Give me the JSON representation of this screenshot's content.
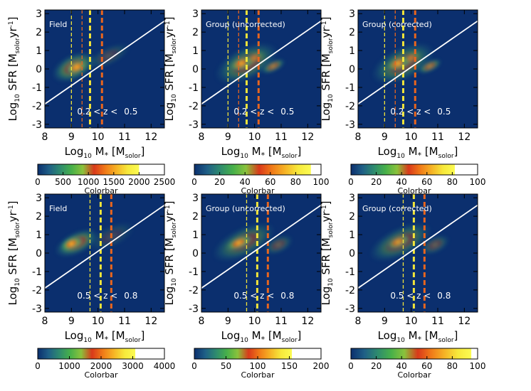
{
  "colors": {
    "plot_bg": "#0b2f6e",
    "fit_line": "#ffffff",
    "vline_yellow": "#f2e43a",
    "vline_orange": "#e8651e",
    "colormap": [
      "#0b2f6e",
      "#1f5f86",
      "#2e8b6e",
      "#47b04a",
      "#8ac23c",
      "#d9391a",
      "#f07a18",
      "#f6b325",
      "#f7e93b",
      "#fbfb52"
    ]
  },
  "chart_data": [
    {
      "type": "heatmap",
      "row": 0,
      "col": 0,
      "label": "Field",
      "redshift": {
        "prefix": "0.2 < z <",
        "value": "0.5"
      },
      "xlabel": {
        "main": "Log",
        "sub": "10",
        "rest": " M",
        "star": "*",
        "unit": "solor"
      },
      "ylabel": {
        "main": "Log",
        "sub": "10",
        "rest": " SFR [M",
        "unit": "solor",
        "yr": "yr",
        "exp": "-1",
        "close": "]"
      },
      "xlim": [
        8,
        12.5
      ],
      "ylim": [
        -3.2,
        3.2
      ],
      "xticks": [
        "8",
        "9",
        "10",
        "11",
        "12"
      ],
      "yticks": [
        "-3",
        "-2",
        "-1",
        "0",
        "1",
        "2",
        "3"
      ],
      "fit_line": {
        "x": [
          8,
          12.5
        ],
        "y": [
          -1.9,
          2.6
        ]
      },
      "vlines": [
        {
          "x": 9.0,
          "color": "yellow",
          "width": "thin"
        },
        {
          "x": 9.4,
          "color": "orange",
          "width": "thin"
        },
        {
          "x": 9.7,
          "color": "yellow",
          "width": "thick"
        },
        {
          "x": 10.15,
          "color": "orange",
          "width": "thick"
        }
      ],
      "blobs": [
        {
          "x": 9.1,
          "y": 0.1,
          "sx": 0.9,
          "sy": 0.7,
          "w": 0.6
        },
        {
          "x": 9.2,
          "y": 0.1,
          "sx": 0.45,
          "sy": 0.35,
          "w": 1.0
        },
        {
          "x": 10.4,
          "y": 0.7,
          "sx": 0.9,
          "sy": 0.5,
          "w": 0.25
        }
      ],
      "colorbar": {
        "ticks": [
          "0",
          "500",
          "1000",
          "1500",
          "2000",
          "2500"
        ],
        "fill": 0.8,
        "label": "Colorbar"
      }
    },
    {
      "type": "heatmap",
      "row": 0,
      "col": 1,
      "label": "Group (uncorrected)",
      "redshift": {
        "prefix": "0.2 < z <",
        "value": "0.5"
      },
      "xlabel": {
        "main": "Log",
        "sub": "10",
        "rest": " M",
        "star": "*",
        "unit": "solor"
      },
      "ylabel": {
        "main": "Log",
        "sub": "10",
        "rest": " SFR [M",
        "unit": "solor",
        "yr": "yr",
        "exp": "-1",
        "close": "]"
      },
      "xlim": [
        8,
        12.5
      ],
      "ylim": [
        -3.2,
        3.2
      ],
      "xticks": [
        "8",
        "9",
        "10",
        "11",
        "12"
      ],
      "yticks": [
        "-3",
        "-2",
        "-1",
        "0",
        "1",
        "2",
        "3"
      ],
      "fit_line": {
        "x": [
          8,
          12.5
        ],
        "y": [
          -1.9,
          2.6
        ]
      },
      "vlines": [
        {
          "x": 9.0,
          "color": "yellow",
          "width": "thin"
        },
        {
          "x": 9.4,
          "color": "orange",
          "width": "thin"
        },
        {
          "x": 9.7,
          "color": "yellow",
          "width": "thick"
        },
        {
          "x": 10.15,
          "color": "orange",
          "width": "thick"
        }
      ],
      "blobs": [
        {
          "x": 9.7,
          "y": 0.3,
          "sx": 1.3,
          "sy": 0.9,
          "w": 0.5
        },
        {
          "x": 9.5,
          "y": 0.3,
          "sx": 0.5,
          "sy": 0.35,
          "w": 0.9
        },
        {
          "x": 10.7,
          "y": 0.15,
          "sx": 0.5,
          "sy": 0.3,
          "w": 0.65
        },
        {
          "x": 10.0,
          "y": 0.6,
          "sx": 0.4,
          "sy": 0.3,
          "w": 0.6
        }
      ],
      "colorbar": {
        "ticks": [
          "0",
          "20",
          "40",
          "60",
          "80",
          "100"
        ],
        "fill": 0.92,
        "label": "Colorbar"
      }
    },
    {
      "type": "heatmap",
      "row": 0,
      "col": 2,
      "label": "Group (corrected)",
      "redshift": {
        "prefix": "0.2 < z <",
        "value": "0.5"
      },
      "xlabel": {
        "main": "Log",
        "sub": "10",
        "rest": " M",
        "star": "*",
        "unit": "solor"
      },
      "ylabel": {
        "main": "Log",
        "sub": "10",
        "rest": " SFR [M",
        "unit": "solor",
        "yr": "yr",
        "exp": "-1",
        "close": "]"
      },
      "xlim": [
        8,
        12.5
      ],
      "ylim": [
        -3.2,
        3.2
      ],
      "xticks": [
        "8",
        "9",
        "10",
        "11",
        "12"
      ],
      "yticks": [
        "-3",
        "-2",
        "-1",
        "0",
        "1",
        "2",
        "3"
      ],
      "fit_line": {
        "x": [
          8,
          12.5
        ],
        "y": [
          -1.9,
          2.6
        ]
      },
      "vlines": [
        {
          "x": 9.0,
          "color": "yellow",
          "width": "thin"
        },
        {
          "x": 9.4,
          "color": "orange",
          "width": "thin"
        },
        {
          "x": 9.7,
          "color": "yellow",
          "width": "thick"
        },
        {
          "x": 10.15,
          "color": "orange",
          "width": "thick"
        }
      ],
      "blobs": [
        {
          "x": 9.7,
          "y": 0.3,
          "sx": 1.3,
          "sy": 0.9,
          "w": 0.5
        },
        {
          "x": 9.5,
          "y": 0.3,
          "sx": 0.5,
          "sy": 0.35,
          "w": 0.9
        },
        {
          "x": 10.7,
          "y": 0.15,
          "sx": 0.5,
          "sy": 0.3,
          "w": 0.65
        },
        {
          "x": 10.0,
          "y": 0.6,
          "sx": 0.4,
          "sy": 0.3,
          "w": 0.6
        }
      ],
      "colorbar": {
        "ticks": [
          "0",
          "20",
          "40",
          "60",
          "80",
          "100"
        ],
        "fill": 0.82,
        "label": "Colorbar"
      }
    },
    {
      "type": "heatmap",
      "row": 1,
      "col": 0,
      "label": "Field",
      "redshift": {
        "prefix": "0.5 < z <",
        "value": "0.8"
      },
      "xlabel": {
        "main": "Log",
        "sub": "10",
        "rest": " M",
        "star": "*",
        "unit": "solor"
      },
      "ylabel": {
        "main": "Log",
        "sub": "10",
        "rest": " SFR [M",
        "unit": "solor",
        "yr": "yr",
        "exp": "-1",
        "close": "]"
      },
      "xlim": [
        8,
        12.5
      ],
      "ylim": [
        -3.2,
        3.2
      ],
      "xticks": [
        "8",
        "9",
        "10",
        "11",
        "12"
      ],
      "yticks": [
        "-3",
        "-2",
        "-1",
        "0",
        "1",
        "2",
        "3"
      ],
      "fit_line": {
        "x": [
          8,
          12.5
        ],
        "y": [
          -1.9,
          2.6
        ]
      },
      "vlines": [
        {
          "x": 9.7,
          "color": "yellow",
          "width": "thin"
        },
        {
          "x": 10.1,
          "color": "yellow",
          "width": "thick"
        },
        {
          "x": 10.5,
          "color": "orange",
          "width": "thick"
        }
      ],
      "blobs": [
        {
          "x": 9.2,
          "y": 0.55,
          "sx": 0.9,
          "sy": 0.6,
          "w": 0.6
        },
        {
          "x": 9.0,
          "y": 0.5,
          "sx": 0.45,
          "sy": 0.35,
          "w": 1.0
        },
        {
          "x": 10.5,
          "y": 0.9,
          "sx": 1.0,
          "sy": 0.6,
          "w": 0.2
        }
      ],
      "colorbar": {
        "ticks": [
          "0",
          "1000",
          "2000",
          "3000",
          "4000"
        ],
        "fill": 0.77,
        "label": "Colorbar"
      }
    },
    {
      "type": "heatmap",
      "row": 1,
      "col": 1,
      "label": "Group (uncorrected)",
      "redshift": {
        "prefix": "0.5 < z <",
        "value": "0.8"
      },
      "xlabel": {
        "main": "Log",
        "sub": "10",
        "rest": " M",
        "star": "*",
        "unit": "solor"
      },
      "ylabel": {
        "main": "Log",
        "sub": "10",
        "rest": " SFR [M",
        "unit": "solor",
        "yr": "yr",
        "exp": "-1",
        "close": "]"
      },
      "xlim": [
        8,
        12.5
      ],
      "ylim": [
        -3.2,
        3.2
      ],
      "xticks": [
        "8",
        "9",
        "10",
        "11",
        "12"
      ],
      "yticks": [
        "-3",
        "-2",
        "-1",
        "0",
        "1",
        "2",
        "3"
      ],
      "fit_line": {
        "x": [
          8,
          12.5
        ],
        "y": [
          -1.9,
          2.6
        ]
      },
      "vlines": [
        {
          "x": 9.7,
          "color": "yellow",
          "width": "thin"
        },
        {
          "x": 10.1,
          "color": "yellow",
          "width": "thick"
        },
        {
          "x": 10.5,
          "color": "orange",
          "width": "thick"
        }
      ],
      "blobs": [
        {
          "x": 9.6,
          "y": 0.6,
          "sx": 1.3,
          "sy": 0.8,
          "w": 0.45
        },
        {
          "x": 9.4,
          "y": 0.55,
          "sx": 0.55,
          "sy": 0.35,
          "w": 0.9
        },
        {
          "x": 10.9,
          "y": 0.45,
          "sx": 0.6,
          "sy": 0.45,
          "w": 0.35
        }
      ],
      "colorbar": {
        "ticks": [
          "0",
          "50",
          "100",
          "150",
          "200"
        ],
        "fill": 0.77,
        "label": "Colorbar"
      }
    },
    {
      "type": "heatmap",
      "row": 1,
      "col": 2,
      "label": "Group (corrected)",
      "redshift": {
        "prefix": "0.5 < z <",
        "value": "0.8"
      },
      "xlabel": {
        "main": "Log",
        "sub": "10",
        "rest": " M",
        "star": "*",
        "unit": "solor"
      },
      "ylabel": {
        "main": "Log",
        "sub": "10",
        "rest": " SFR [M",
        "unit": "solor",
        "yr": "yr",
        "exp": "-1",
        "close": "]"
      },
      "xlim": [
        8,
        12.5
      ],
      "ylim": [
        -3.2,
        3.2
      ],
      "xticks": [
        "8",
        "9",
        "10",
        "11",
        "12"
      ],
      "yticks": [
        "-3",
        "-2",
        "-1",
        "0",
        "1",
        "2",
        "3"
      ],
      "fit_line": {
        "x": [
          8,
          12.5
        ],
        "y": [
          -1.9,
          2.6
        ]
      },
      "vlines": [
        {
          "x": 9.7,
          "color": "yellow",
          "width": "thin"
        },
        {
          "x": 10.1,
          "color": "yellow",
          "width": "thick"
        },
        {
          "x": 10.5,
          "color": "orange",
          "width": "thick"
        }
      ],
      "blobs": [
        {
          "x": 9.6,
          "y": 0.6,
          "sx": 1.3,
          "sy": 0.8,
          "w": 0.45
        },
        {
          "x": 9.5,
          "y": 0.6,
          "sx": 0.5,
          "sy": 0.35,
          "w": 0.75
        },
        {
          "x": 10.9,
          "y": 0.45,
          "sx": 0.6,
          "sy": 0.45,
          "w": 0.35
        }
      ],
      "colorbar": {
        "ticks": [
          "0",
          "20",
          "40",
          "60",
          "80",
          "100"
        ],
        "fill": 0.95,
        "label": "Colorbar"
      }
    }
  ]
}
